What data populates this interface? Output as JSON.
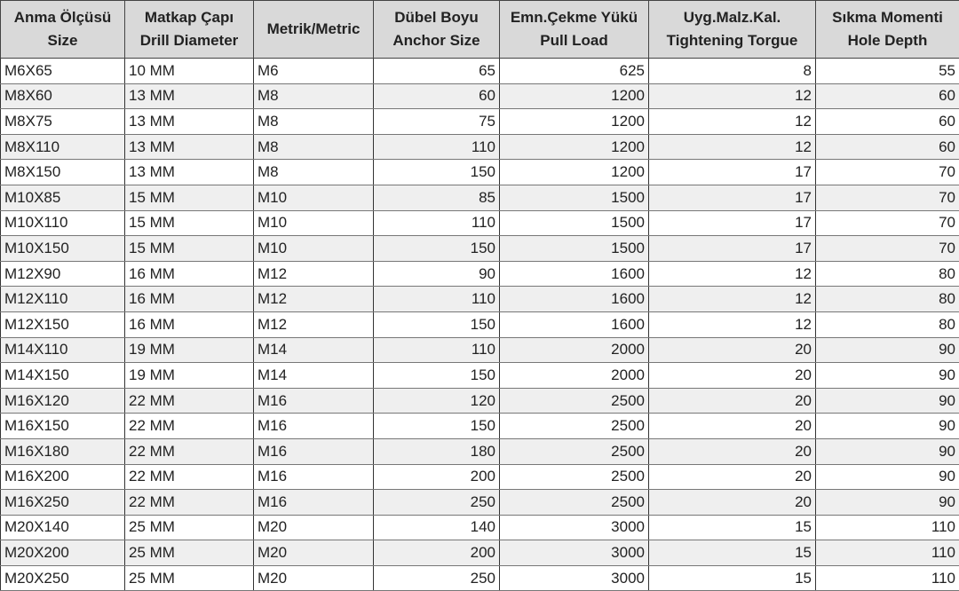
{
  "headers": [
    [
      "Anma Ölçüsü",
      "Size"
    ],
    [
      "Matkap Çapı",
      "Drill Diameter"
    ],
    [
      "Metrik/Metric",
      ""
    ],
    [
      "Dübel Boyu",
      "Anchor Size"
    ],
    [
      "Emn.Çekme Yükü",
      "Pull Load"
    ],
    [
      "Uyg.Malz.Kal.",
      "Tightening Torgue"
    ],
    [
      "Sıkma Momenti",
      "Hole Depth"
    ]
  ],
  "rows": [
    [
      "M6X65",
      "10 MM",
      "M6",
      "65",
      "625",
      "8",
      "55"
    ],
    [
      "M8X60",
      "13 MM",
      "M8",
      "60",
      "1200",
      "12",
      "60"
    ],
    [
      "M8X75",
      "13 MM",
      "M8",
      "75",
      "1200",
      "12",
      "60"
    ],
    [
      "M8X110",
      "13 MM",
      "M8",
      "110",
      "1200",
      "12",
      "60"
    ],
    [
      "M8X150",
      "13 MM",
      "M8",
      "150",
      "1200",
      "17",
      "70"
    ],
    [
      "M10X85",
      "15 MM",
      "M10",
      "85",
      "1500",
      "17",
      "70"
    ],
    [
      "M10X110",
      "15 MM",
      "M10",
      "110",
      "1500",
      "17",
      "70"
    ],
    [
      "M10X150",
      "15 MM",
      "M10",
      "150",
      "1500",
      "17",
      "70"
    ],
    [
      "M12X90",
      "16 MM",
      "M12",
      "90",
      "1600",
      "12",
      "80"
    ],
    [
      "M12X110",
      "16 MM",
      "M12",
      "110",
      "1600",
      "12",
      "80"
    ],
    [
      "M12X150",
      "16 MM",
      "M12",
      "150",
      "1600",
      "12",
      "80"
    ],
    [
      "M14X110",
      "19 MM",
      "M14",
      "110",
      "2000",
      "20",
      "90"
    ],
    [
      "M14X150",
      "19 MM",
      "M14",
      "150",
      "2000",
      "20",
      "90"
    ],
    [
      "M16X120",
      "22 MM",
      "M16",
      "120",
      "2500",
      "20",
      "90"
    ],
    [
      "M16X150",
      "22 MM",
      "M16",
      "150",
      "2500",
      "20",
      "90"
    ],
    [
      "M16X180",
      "22 MM",
      "M16",
      "180",
      "2500",
      "20",
      "90"
    ],
    [
      "M16X200",
      "22 MM",
      "M16",
      "200",
      "2500",
      "20",
      "90"
    ],
    [
      "M16X250",
      "22 MM",
      "M16",
      "250",
      "2500",
      "20",
      "90"
    ],
    [
      "M20X140",
      "25 MM",
      "M20",
      "140",
      "3000",
      "15",
      "110"
    ],
    [
      "M20X200",
      "25 MM",
      "M20",
      "200",
      "3000",
      "15",
      "110"
    ],
    [
      "M20X250",
      "25 MM",
      "M20",
      "250",
      "3000",
      "15",
      "110"
    ]
  ]
}
